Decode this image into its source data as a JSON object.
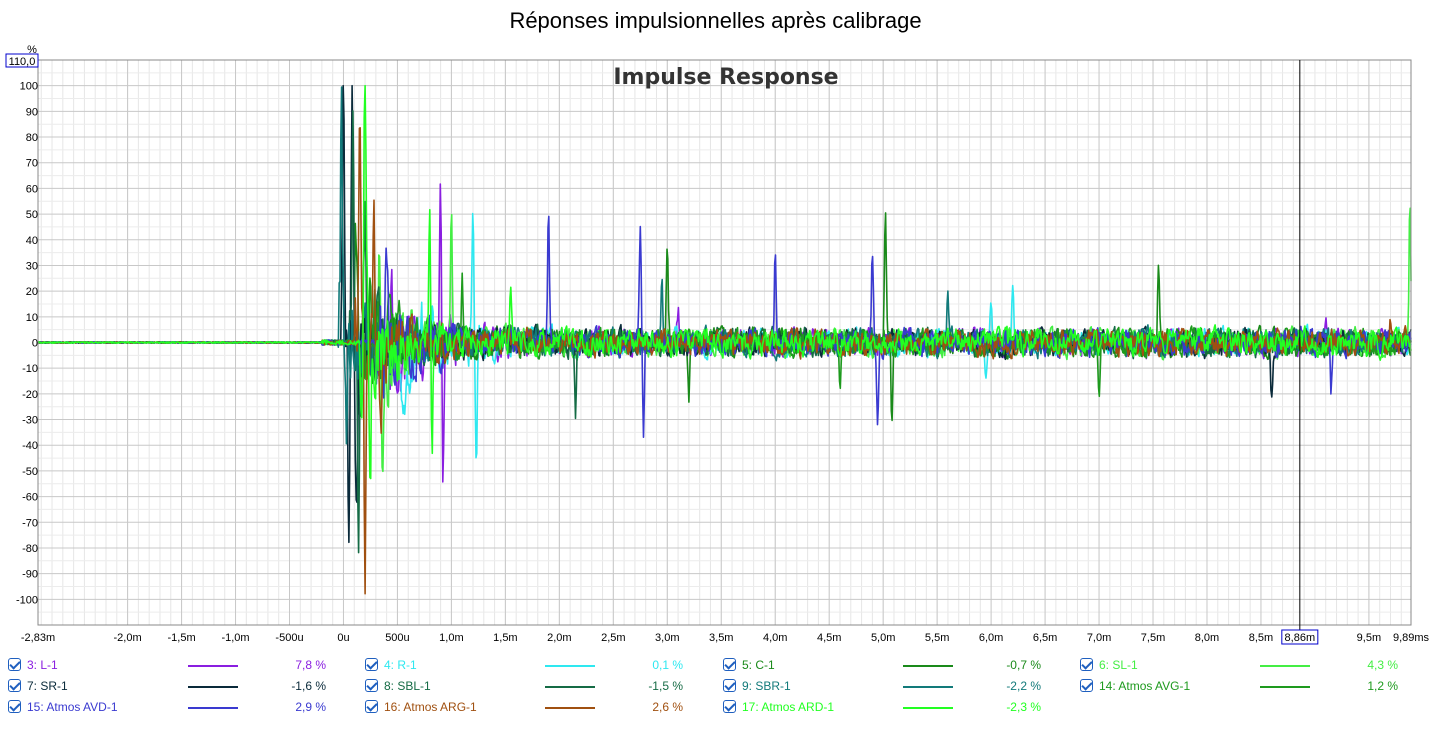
{
  "page_title": "Réponses impulsionnelles après calibrage",
  "chart_data": {
    "type": "line",
    "title": "Impulse Response",
    "ylabel": "%",
    "ymax_box": "110,0",
    "cursor_label": "8,86m",
    "cursor_x_ms": 8.86,
    "xlim": [
      -2.83,
      9.89
    ],
    "ylim": [
      -110,
      110
    ],
    "grid": true,
    "x_ticks": [
      {
        "v": -2.83,
        "label": "-2,83m"
      },
      {
        "v": -2.0,
        "label": "-2,0m"
      },
      {
        "v": -1.5,
        "label": "-1,5m"
      },
      {
        "v": -1.0,
        "label": "-1,0m"
      },
      {
        "v": -0.5,
        "label": "-500u"
      },
      {
        "v": 0.0,
        "label": "0u"
      },
      {
        "v": 0.5,
        "label": "500u"
      },
      {
        "v": 1.0,
        "label": "1,0m"
      },
      {
        "v": 1.5,
        "label": "1,5m"
      },
      {
        "v": 2.0,
        "label": "2,0m"
      },
      {
        "v": 2.5,
        "label": "2,5m"
      },
      {
        "v": 3.0,
        "label": "3,0m"
      },
      {
        "v": 3.5,
        "label": "3,5m"
      },
      {
        "v": 4.0,
        "label": "4,0m"
      },
      {
        "v": 4.5,
        "label": "4,5m"
      },
      {
        "v": 5.0,
        "label": "5,0m"
      },
      {
        "v": 5.5,
        "label": "5,5m"
      },
      {
        "v": 6.0,
        "label": "6,0m"
      },
      {
        "v": 6.5,
        "label": "6,5m"
      },
      {
        "v": 7.0,
        "label": "7,0m"
      },
      {
        "v": 7.5,
        "label": "7,5m"
      },
      {
        "v": 8.0,
        "label": "8,0m"
      },
      {
        "v": 8.5,
        "label": "8,5m"
      },
      {
        "v": 9.5,
        "label": "9,5m"
      },
      {
        "v": 9.89,
        "label": "9,89ms"
      }
    ],
    "y_ticks": [
      100,
      90,
      80,
      70,
      60,
      50,
      40,
      30,
      20,
      10,
      0,
      -10,
      -20,
      -30,
      -40,
      -50,
      -60,
      -70,
      -80,
      -90,
      -100
    ],
    "series": [
      {
        "name": "3: L-1",
        "value": "7,8 %",
        "color": "#8a1ee0",
        "onset_ms": 0.42,
        "peaks": [
          [
            0.45,
            30
          ],
          [
            0.9,
            65
          ],
          [
            0.92,
            -62
          ],
          [
            3.1,
            12
          ],
          [
            9.1,
            13
          ]
        ]
      },
      {
        "name": "4: R-1",
        "value": "0,1 %",
        "color": "#2ee8f0",
        "onset_ms": 0.5,
        "peaks": [
          [
            1.2,
            53
          ],
          [
            1.23,
            -44
          ],
          [
            6.0,
            17
          ],
          [
            6.2,
            17
          ],
          [
            5.95,
            -12
          ]
        ]
      },
      {
        "name": "5: C-1",
        "value": "-0,7 %",
        "color": "#1a8a1a",
        "onset_ms": 0.1,
        "peaks": [
          [
            0.12,
            40
          ],
          [
            0.15,
            -45
          ],
          [
            3.0,
            38
          ],
          [
            3.2,
            -25
          ],
          [
            5.02,
            49
          ],
          [
            5.08,
            -34
          ],
          [
            7.55,
            33
          ]
        ]
      },
      {
        "name": "6: SL-1",
        "value": "4,3 %",
        "color": "#44ee44",
        "onset_ms": 0.3,
        "peaks": [
          [
            0.33,
            55
          ],
          [
            0.36,
            -50
          ],
          [
            1.0,
            45
          ],
          [
            9.88,
            54
          ]
        ]
      },
      {
        "name": "7: SR-1",
        "value": "-1,6 %",
        "color": "#0a2a3a",
        "onset_ms": -0.02,
        "peaks": [
          [
            0.0,
            100
          ],
          [
            0.05,
            -77
          ],
          [
            0.08,
            95
          ],
          [
            0.12,
            -70
          ],
          [
            8.6,
            -22
          ]
        ]
      },
      {
        "name": "8: SBL-1",
        "value": "-1,5 %",
        "color": "#156b45",
        "onset_ms": 0.05,
        "peaks": [
          [
            0.09,
            100
          ],
          [
            0.14,
            -75
          ],
          [
            0.2,
            60
          ],
          [
            2.15,
            -30
          ]
        ]
      },
      {
        "name": "9: SBR-1",
        "value": "-2,2 %",
        "color": "#127a7a",
        "onset_ms": -0.05,
        "peaks": [
          [
            -0.02,
            100
          ],
          [
            0.03,
            -65
          ],
          [
            2.95,
            22
          ],
          [
            5.6,
            18
          ]
        ]
      },
      {
        "name": "14: Atmos AVG-1",
        "value": "1,2 %",
        "color": "#1e9a1e",
        "onset_ms": 0.2,
        "peaks": [
          [
            0.25,
            35
          ],
          [
            1.1,
            25
          ],
          [
            4.6,
            -25
          ],
          [
            7.0,
            -22
          ]
        ]
      },
      {
        "name": "15: Atmos AVD-1",
        "value": "2,9 %",
        "color": "#3a3ad0",
        "onset_ms": 0.3,
        "peaks": [
          [
            0.4,
            40
          ],
          [
            1.9,
            56
          ],
          [
            2.75,
            46
          ],
          [
            2.78,
            -35
          ],
          [
            4.0,
            35
          ],
          [
            4.9,
            35
          ],
          [
            4.95,
            -32
          ],
          [
            9.15,
            -21
          ]
        ]
      },
      {
        "name": "16: Atmos ARG-1",
        "value": "2,6 %",
        "color": "#a05010",
        "onset_ms": 0.1,
        "peaks": [
          [
            0.15,
            100
          ],
          [
            0.2,
            -100
          ],
          [
            0.28,
            53
          ],
          [
            0.35,
            -38
          ],
          [
            9.7,
            8
          ]
        ]
      },
      {
        "name": "17: Atmos ARD-1",
        "value": "-2,3 %",
        "color": "#22ff22",
        "onset_ms": 0.15,
        "peaks": [
          [
            0.2,
            100
          ],
          [
            0.25,
            -73
          ],
          [
            0.8,
            53
          ],
          [
            0.82,
            -52
          ],
          [
            1.55,
            20
          ]
        ]
      }
    ]
  }
}
